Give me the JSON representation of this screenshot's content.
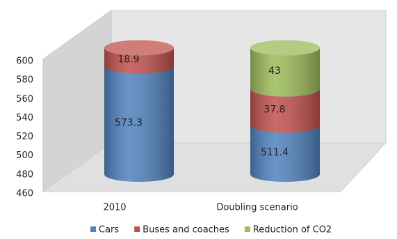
{
  "chart_data": {
    "type": "bar3d-stacked-cylinder",
    "categories": [
      "2010",
      "Doubling scenario"
    ],
    "series": [
      {
        "name": "Cars",
        "color": "#4f81bd",
        "values": [
          573.3,
          511.4
        ]
      },
      {
        "name": "Buses and coaches",
        "color": "#c0504d",
        "values": [
          18.9,
          37.8
        ]
      },
      {
        "name": "Reduction of CO2",
        "color": "#9bbb59",
        "values": [
          null,
          43
        ]
      }
    ],
    "ylim": [
      460,
      600
    ],
    "yticks": [
      460,
      480,
      500,
      520,
      540,
      560,
      580,
      600
    ],
    "grid": false,
    "legend": "bottom"
  }
}
